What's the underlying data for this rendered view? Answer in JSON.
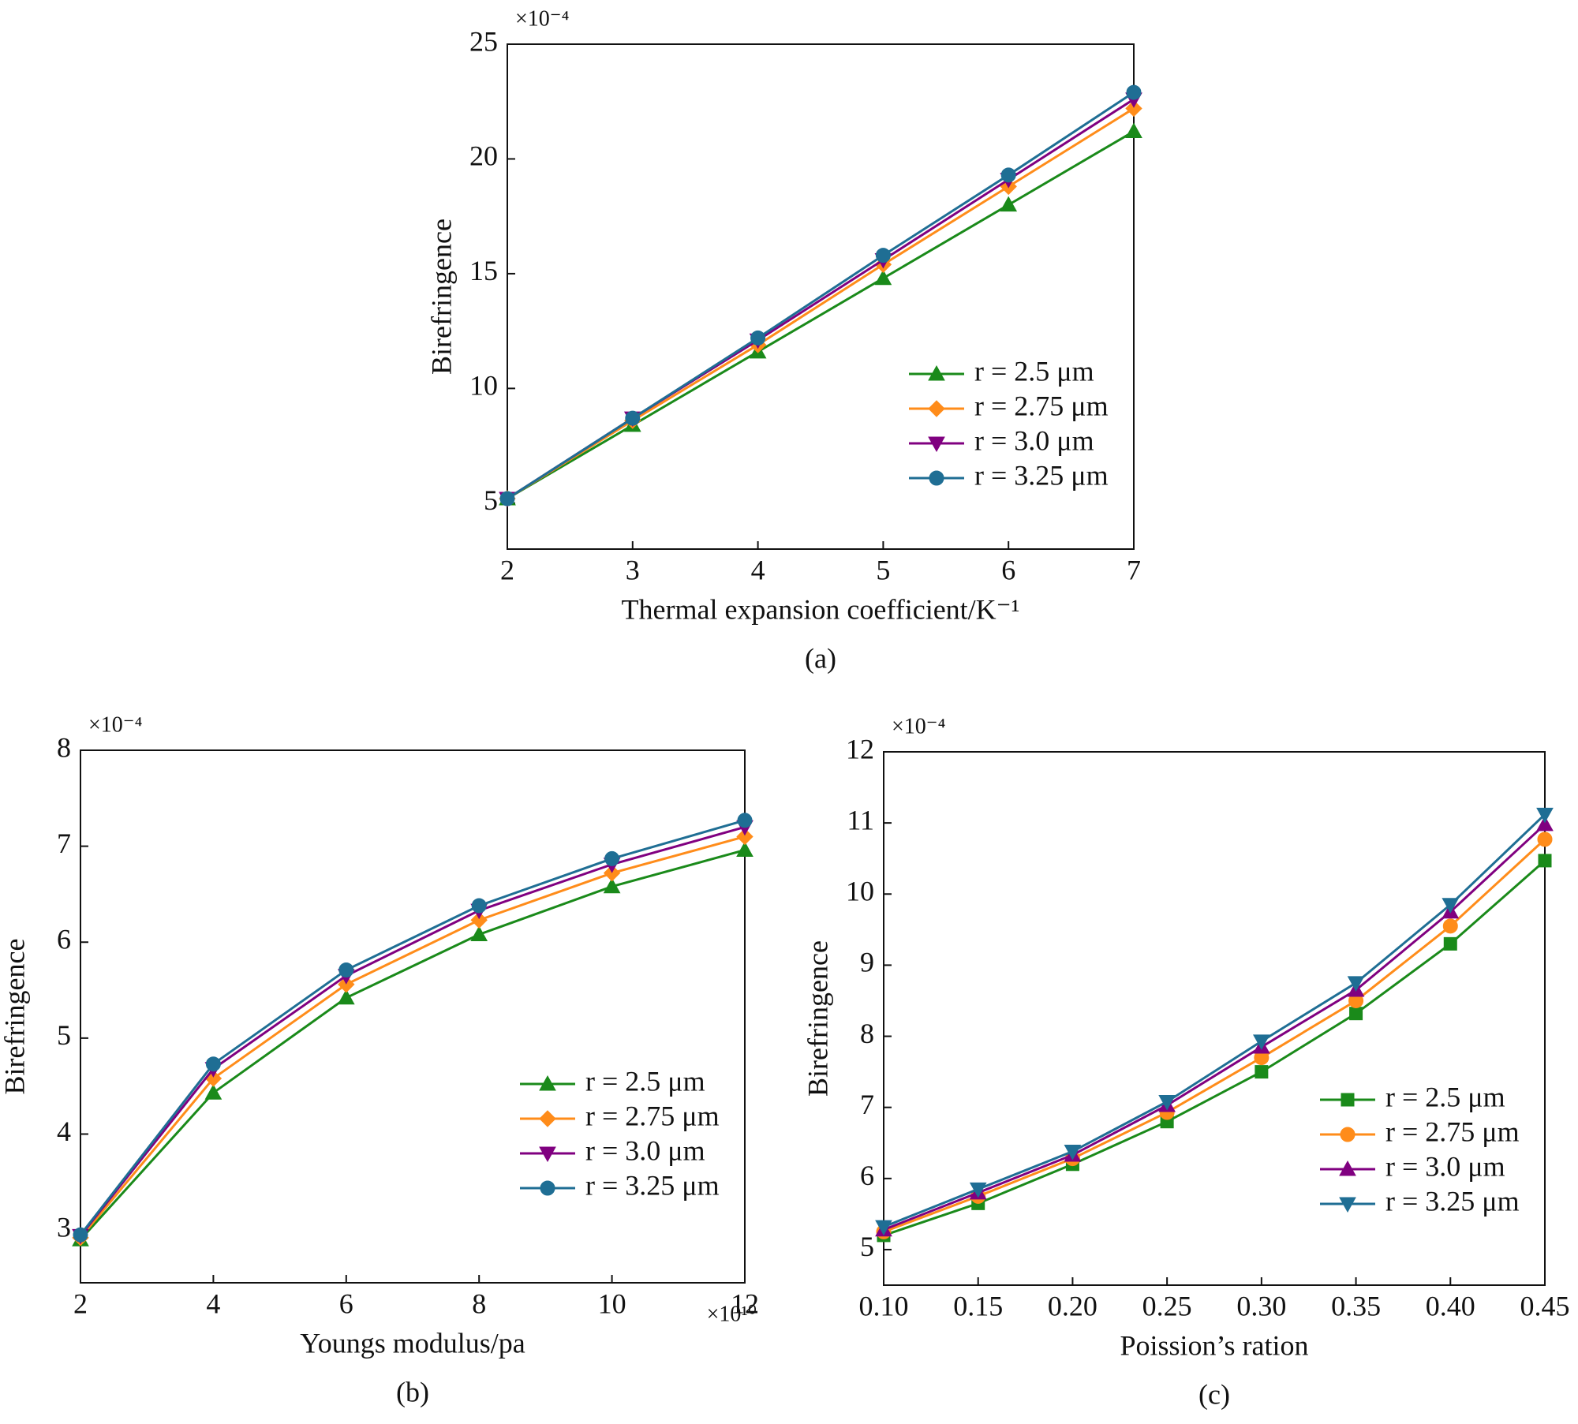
{
  "chart_data": [
    {
      "type": "line",
      "caption": "(a)",
      "y_label": "Birefringence",
      "x_label": "Thermal expansion coefficient/K⁻¹",
      "y_multiplier": "×10⁻⁴",
      "x": [
        2,
        3,
        4,
        5,
        6,
        7
      ],
      "xlim": [
        2,
        7
      ],
      "xticks": [
        2,
        3,
        4,
        5,
        6,
        7
      ],
      "ylim": [
        3,
        25
      ],
      "yticks": [
        5,
        10,
        15,
        20,
        25
      ],
      "legend": "lower right",
      "series": [
        {
          "name": "r = 2.5 μm",
          "color": "#1a8a1a",
          "marker": "triangle-up",
          "values": [
            5.2,
            8.4,
            11.6,
            14.8,
            18.0,
            21.2
          ]
        },
        {
          "name": "r = 2.75 μm",
          "color": "#ff8c1a",
          "marker": "diamond",
          "values": [
            5.2,
            8.6,
            11.9,
            15.4,
            18.8,
            22.2
          ]
        },
        {
          "name": "r = 3.0 μm",
          "color": "#800080",
          "marker": "triangle-down",
          "values": [
            5.2,
            8.7,
            12.1,
            15.6,
            19.1,
            22.6
          ]
        },
        {
          "name": "r = 3.25 μm",
          "color": "#1f6e94",
          "marker": "circle",
          "values": [
            5.2,
            8.7,
            12.2,
            15.8,
            19.3,
            22.9
          ]
        }
      ]
    },
    {
      "type": "line",
      "caption": "(b)",
      "y_label": "Birefringence",
      "x_label": "Youngs modulus/pa",
      "y_multiplier": "×10⁻⁴",
      "x_multiplier": "×10¹⁰",
      "x": [
        2,
        4,
        6,
        8,
        10,
        12
      ],
      "xlim": [
        2,
        12
      ],
      "xticks": [
        2,
        4,
        6,
        8,
        10,
        12
      ],
      "ylim": [
        2.45,
        8
      ],
      "yticks": [
        3,
        4,
        5,
        6,
        7,
        8
      ],
      "legend": "lower right",
      "series": [
        {
          "name": "r = 2.5 μm",
          "color": "#1a8a1a",
          "marker": "triangle-up",
          "values": [
            2.9,
            4.43,
            5.42,
            6.08,
            6.58,
            6.96
          ]
        },
        {
          "name": "r = 2.75 μm",
          "color": "#ff8c1a",
          "marker": "diamond",
          "values": [
            2.92,
            4.58,
            5.56,
            6.23,
            6.72,
            7.1
          ]
        },
        {
          "name": "r = 3.0 μm",
          "color": "#800080",
          "marker": "triangle-down",
          "values": [
            2.94,
            4.68,
            5.65,
            6.33,
            6.81,
            7.2
          ]
        },
        {
          "name": "r = 3.25 μm",
          "color": "#1f6e94",
          "marker": "circle",
          "values": [
            2.95,
            4.73,
            5.71,
            6.38,
            6.87,
            7.27
          ]
        }
      ]
    },
    {
      "type": "line",
      "caption": "(c)",
      "y_label": "Birefringence",
      "x_label": "Poission’s ration",
      "y_multiplier": "×10⁻⁴",
      "x": [
        0.1,
        0.15,
        0.2,
        0.25,
        0.3,
        0.35,
        0.4,
        0.45
      ],
      "xlim": [
        0.1,
        0.45
      ],
      "xticks": [
        {
          "value": 0.1,
          "label": "0.10"
        },
        0.15,
        {
          "value": 0.2,
          "label": "0.20"
        },
        0.25,
        {
          "value": 0.3,
          "label": "0.30"
        },
        0.35,
        {
          "value": 0.4,
          "label": "0.40"
        },
        0.45
      ],
      "ylim": [
        4.5,
        12
      ],
      "yticks": [
        5,
        6,
        7,
        8,
        9,
        10,
        11,
        12
      ],
      "legend": "lower right",
      "series": [
        {
          "name": "r = 2.5 μm",
          "color": "#1a8a1a",
          "marker": "square",
          "values": [
            5.2,
            5.65,
            6.2,
            6.8,
            7.5,
            8.32,
            9.3,
            10.47
          ]
        },
        {
          "name": "r = 2.75 μm",
          "color": "#ff8c1a",
          "marker": "circle",
          "values": [
            5.25,
            5.75,
            6.28,
            6.93,
            7.7,
            8.5,
            9.55,
            10.77
          ]
        },
        {
          "name": "r = 3.0 μm",
          "color": "#800080",
          "marker": "triangle-up",
          "values": [
            5.28,
            5.8,
            6.33,
            7.03,
            7.85,
            8.65,
            9.75,
            10.98
          ]
        },
        {
          "name": "r = 3.25 μm",
          "color": "#1f6e94",
          "marker": "triangle-down",
          "values": [
            5.32,
            5.85,
            6.38,
            7.08,
            7.93,
            8.75,
            9.85,
            11.12
          ]
        }
      ]
    }
  ]
}
